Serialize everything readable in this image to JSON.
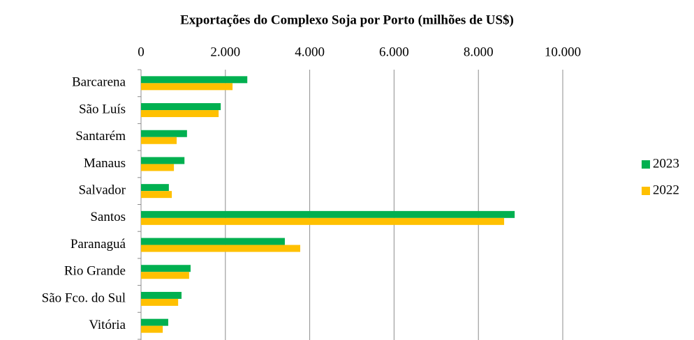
{
  "chart_data": {
    "type": "bar",
    "orientation": "horizontal",
    "title": "Exportações do Complexo Soja por Porto (milhões de US$)",
    "categories": [
      "Barcarena",
      "São Luís",
      "Santarém",
      "Manaus",
      "Salvador",
      "Santos",
      "Paranaguá",
      "Rio Grande",
      "São Fco. do Sul",
      "Vitória"
    ],
    "series": [
      {
        "name": "2023",
        "color": "#00b050",
        "values": [
          2520,
          1890,
          1090,
          1030,
          660,
          8860,
          3410,
          1175,
          960,
          645
        ]
      },
      {
        "name": "2022",
        "color": "#ffc000",
        "values": [
          2170,
          1840,
          845,
          780,
          730,
          8610,
          3775,
          1140,
          880,
          515
        ]
      }
    ],
    "xlim": [
      0,
      10000
    ],
    "xticks": [
      0,
      {
        "value": 2000,
        "label": "2.000"
      },
      {
        "value": 4000,
        "label": "4.000"
      },
      {
        "value": 6000,
        "label": "6.000"
      },
      {
        "value": 8000,
        "label": "8.000"
      },
      {
        "value": 10000,
        "label": "10.000"
      }
    ],
    "grid": true,
    "legend": "right"
  }
}
